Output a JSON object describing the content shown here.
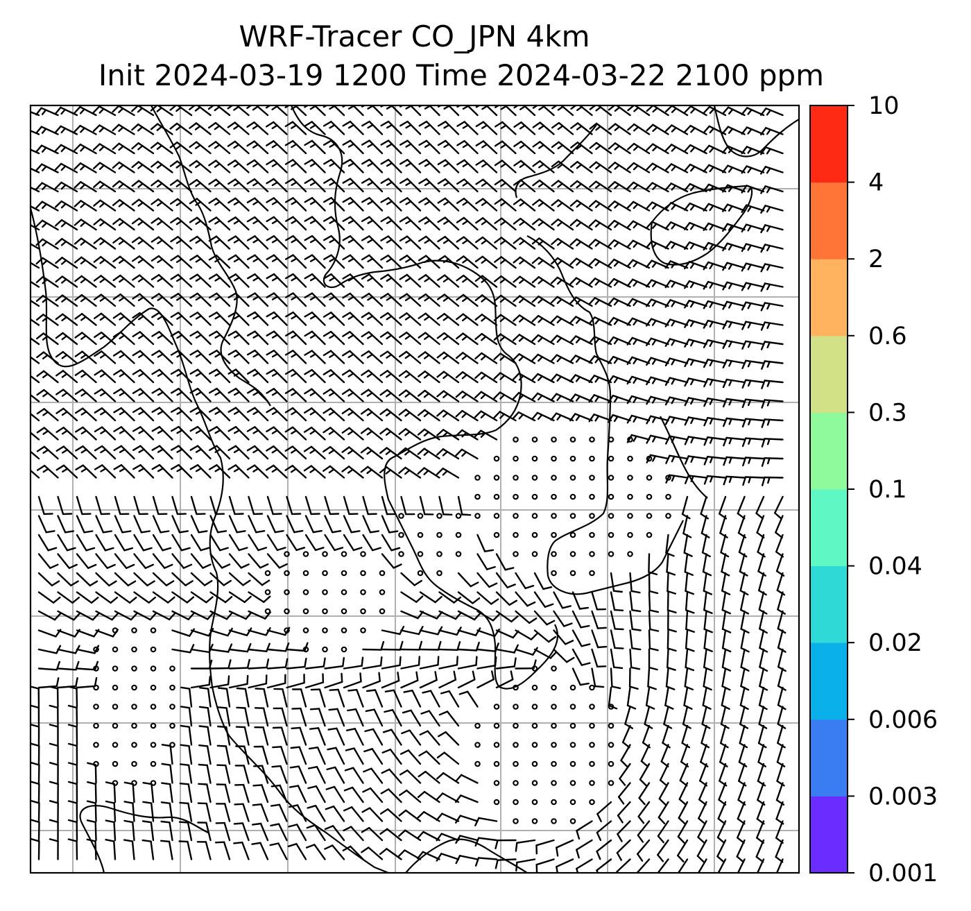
{
  "title": [
    "WRF-Tracer CO_JPN 4km",
    "Init 2024-03-19 1200 Time 2024-03-22 2100 ppm"
  ],
  "chart_data": {
    "type": "heatmap",
    "title": "WRF-Tracer CO_JPN 4km",
    "subtitle": "Init 2024-03-19 1200 Time 2024-03-22 2100 ppm",
    "field_max_ppm": 0.001,
    "overlays": [
      "coastlines",
      "wind-barbs",
      "lat-lon-gridlines"
    ],
    "grid": true,
    "colorbar": {
      "position": "right",
      "ticks": [
        "0.001",
        "0.003",
        "0.006",
        "0.02",
        "0.04",
        "0.1",
        "0.3",
        "0.6",
        "2",
        "4",
        "10"
      ],
      "colors": [
        "#6a2cff",
        "#3a7cf2",
        "#09b0ea",
        "#2ed9d6",
        "#5ff7c3",
        "#8efa9c",
        "#d2e185",
        "#ffb35f",
        "#ff7537",
        "#ff2a14"
      ]
    }
  }
}
